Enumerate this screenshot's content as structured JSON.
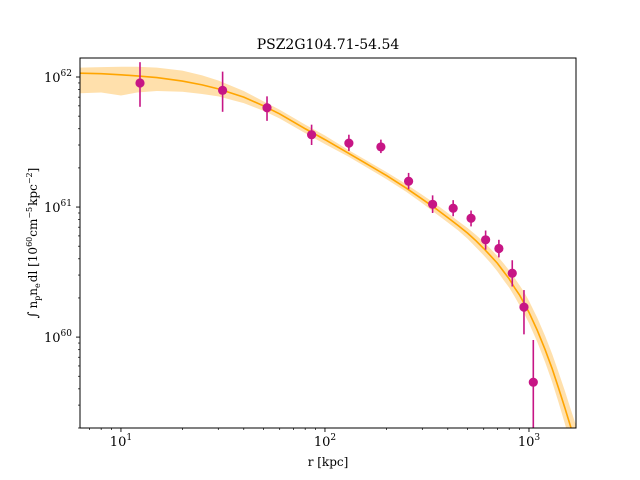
{
  "chart_data": {
    "type": "scatter",
    "title": "PSZ2G104.71-54.54",
    "xlabel": "r [kpc]",
    "ylabel_parts": {
      "integral": "∫",
      "n": "n",
      "p": "p",
      "e": "e",
      "dl": "dl [10",
      "exp60": "60",
      "cm": "cm",
      "exp_cm": "−5",
      "kpc": "kpc",
      "exp_kpc": "−2",
      "close": "]"
    },
    "x_scale": "log",
    "y_scale": "log",
    "xlim": [
      6.3,
      1700
    ],
    "ylim": [
      2e+59,
      1.4e+62
    ],
    "x_ticks": [
      {
        "value": 10,
        "base": "10",
        "exp": "1"
      },
      {
        "value": 100,
        "base": "10",
        "exp": "2"
      },
      {
        "value": 1000,
        "base": "10",
        "exp": "3"
      }
    ],
    "y_ticks": [
      {
        "value": 1e+60,
        "base": "10",
        "exp": "60"
      },
      {
        "value": 1e+61,
        "base": "10",
        "exp": "61"
      },
      {
        "value": 1e+62,
        "base": "10",
        "exp": "62"
      }
    ],
    "grid": false,
    "colors": {
      "points": "#c71585",
      "model_line": "#ffa500",
      "model_band": "#ffd590"
    },
    "points": [
      {
        "x": 12.4,
        "y": 9e+61,
        "ylo": 5.9e+61,
        "yhi": 1.3e+62
      },
      {
        "x": 31.5,
        "y": 7.9e+61,
        "ylo": 5.4e+61,
        "yhi": 1.1e+62
      },
      {
        "x": 52,
        "y": 5.8e+61,
        "ylo": 4.6e+61,
        "yhi": 7.1e+61
      },
      {
        "x": 86,
        "y": 3.6e+61,
        "ylo": 3e+61,
        "yhi": 4.3e+61
      },
      {
        "x": 131,
        "y": 3.1e+61,
        "ylo": 2.7e+61,
        "yhi": 3.6e+61
      },
      {
        "x": 188,
        "y": 2.9e+61,
        "ylo": 2.6e+61,
        "yhi": 3.3e+61
      },
      {
        "x": 257,
        "y": 1.58e+61,
        "ylo": 1.37e+61,
        "yhi": 1.83e+61
      },
      {
        "x": 337,
        "y": 1.05e+61,
        "ylo": 9e+60,
        "yhi": 1.23e+61
      },
      {
        "x": 425,
        "y": 9.8e+60,
        "ylo": 8.5e+60,
        "yhi": 1.13e+61
      },
      {
        "x": 520,
        "y": 8.2e+60,
        "ylo": 7.1e+60,
        "yhi": 9.4e+60
      },
      {
        "x": 613,
        "y": 5.6e+60,
        "ylo": 4.7e+60,
        "yhi": 6.6e+60
      },
      {
        "x": 712,
        "y": 4.8e+60,
        "ylo": 4.1e+60,
        "yhi": 5.6e+60
      },
      {
        "x": 828,
        "y": 3.1e+60,
        "ylo": 2.45e+60,
        "yhi": 3.9e+60
      },
      {
        "x": 945,
        "y": 1.7e+60,
        "ylo": 1.05e+60,
        "yhi": 2.3e+60
      },
      {
        "x": 1050,
        "y": 4.5e+59,
        "ylo": 1.9e+59,
        "yhi": 9.5e+59
      }
    ],
    "model": {
      "x": [
        6.3,
        8,
        10,
        12,
        15,
        20,
        25,
        30,
        40,
        50,
        60,
        80,
        100,
        130,
        160,
        200,
        250,
        300,
        350,
        400,
        450,
        500,
        550,
        600,
        650,
        700,
        750,
        800,
        850,
        900,
        950,
        1000,
        1100,
        1200,
        1300,
        1400,
        1500,
        1600,
        1700
      ],
      "y": [
        1.07e+62,
        1.06e+62,
        1.04e+62,
        1.02e+62,
        9.9e+61,
        9.3e+61,
        8.7e+61,
        8.1e+61,
        7e+61,
        6e+61,
        5.2e+61,
        4e+61,
        3.3e+61,
        2.6e+61,
        2.15e+61,
        1.75e+61,
        1.4e+61,
        1.15e+61,
        9.7e+60,
        8.3e+60,
        7.2e+60,
        6.3e+60,
        5.5e+60,
        4.8e+60,
        4.2e+60,
        3.7e+60,
        3.2e+60,
        2.8e+60,
        2.4e+60,
        2.1e+60,
        1.8e+60,
        1.55e+60,
        1.12e+60,
        8e+59,
        5.7e+59,
        4e+59,
        2.85e+59,
        2.05e+59,
        1.5e+59
      ],
      "band_lo": [
        7.5e+61,
        7.6e+61,
        7.2e+61,
        7.6e+61,
        7.8e+61,
        7.7e+61,
        7.4e+61,
        7.1e+61,
        6.3e+61,
        5.5e+61,
        4.8e+61,
        3.7e+61,
        3.05e+61,
        2.45e+61,
        2.02e+61,
        1.64e+61,
        1.31e+61,
        1.07e+61,
        8.9e+60,
        7.6e+60,
        6.6e+60,
        5.7e+60,
        4.9e+60,
        4.25e+60,
        3.7e+60,
        3.2e+60,
        2.75e+60,
        2.4e+60,
        2.05e+60,
        1.75e+60,
        1.5e+60,
        1.28e+60,
        9.1e+59,
        6.4e+59,
        4.5e+59,
        3.1e+59,
        2.15e+59,
        1.5e+59,
        1.05e+59
      ],
      "band_hi": [
        1.18e+62,
        1.19e+62,
        1.2e+62,
        1.2e+62,
        1.18e+62,
        1.12e+62,
        1.03e+62,
        9.4e+61,
        7.8e+61,
        6.5e+61,
        5.6e+61,
        4.3e+61,
        3.55e+61,
        2.75e+61,
        2.28e+61,
        1.86e+61,
        1.5e+61,
        1.24e+61,
        1.05e+61,
        9e+60,
        7.8e+60,
        6.9e+60,
        6.1e+60,
        5.4e+60,
        4.75e+60,
        4.2e+60,
        3.7e+60,
        3.25e+60,
        2.85e+60,
        2.5e+60,
        2.2e+60,
        1.9e+60,
        1.4e+60,
        1.02e+60,
        7.4e+59,
        5.3e+59,
        3.85e+59,
        2.8e+59,
        2.1e+59
      ]
    }
  }
}
